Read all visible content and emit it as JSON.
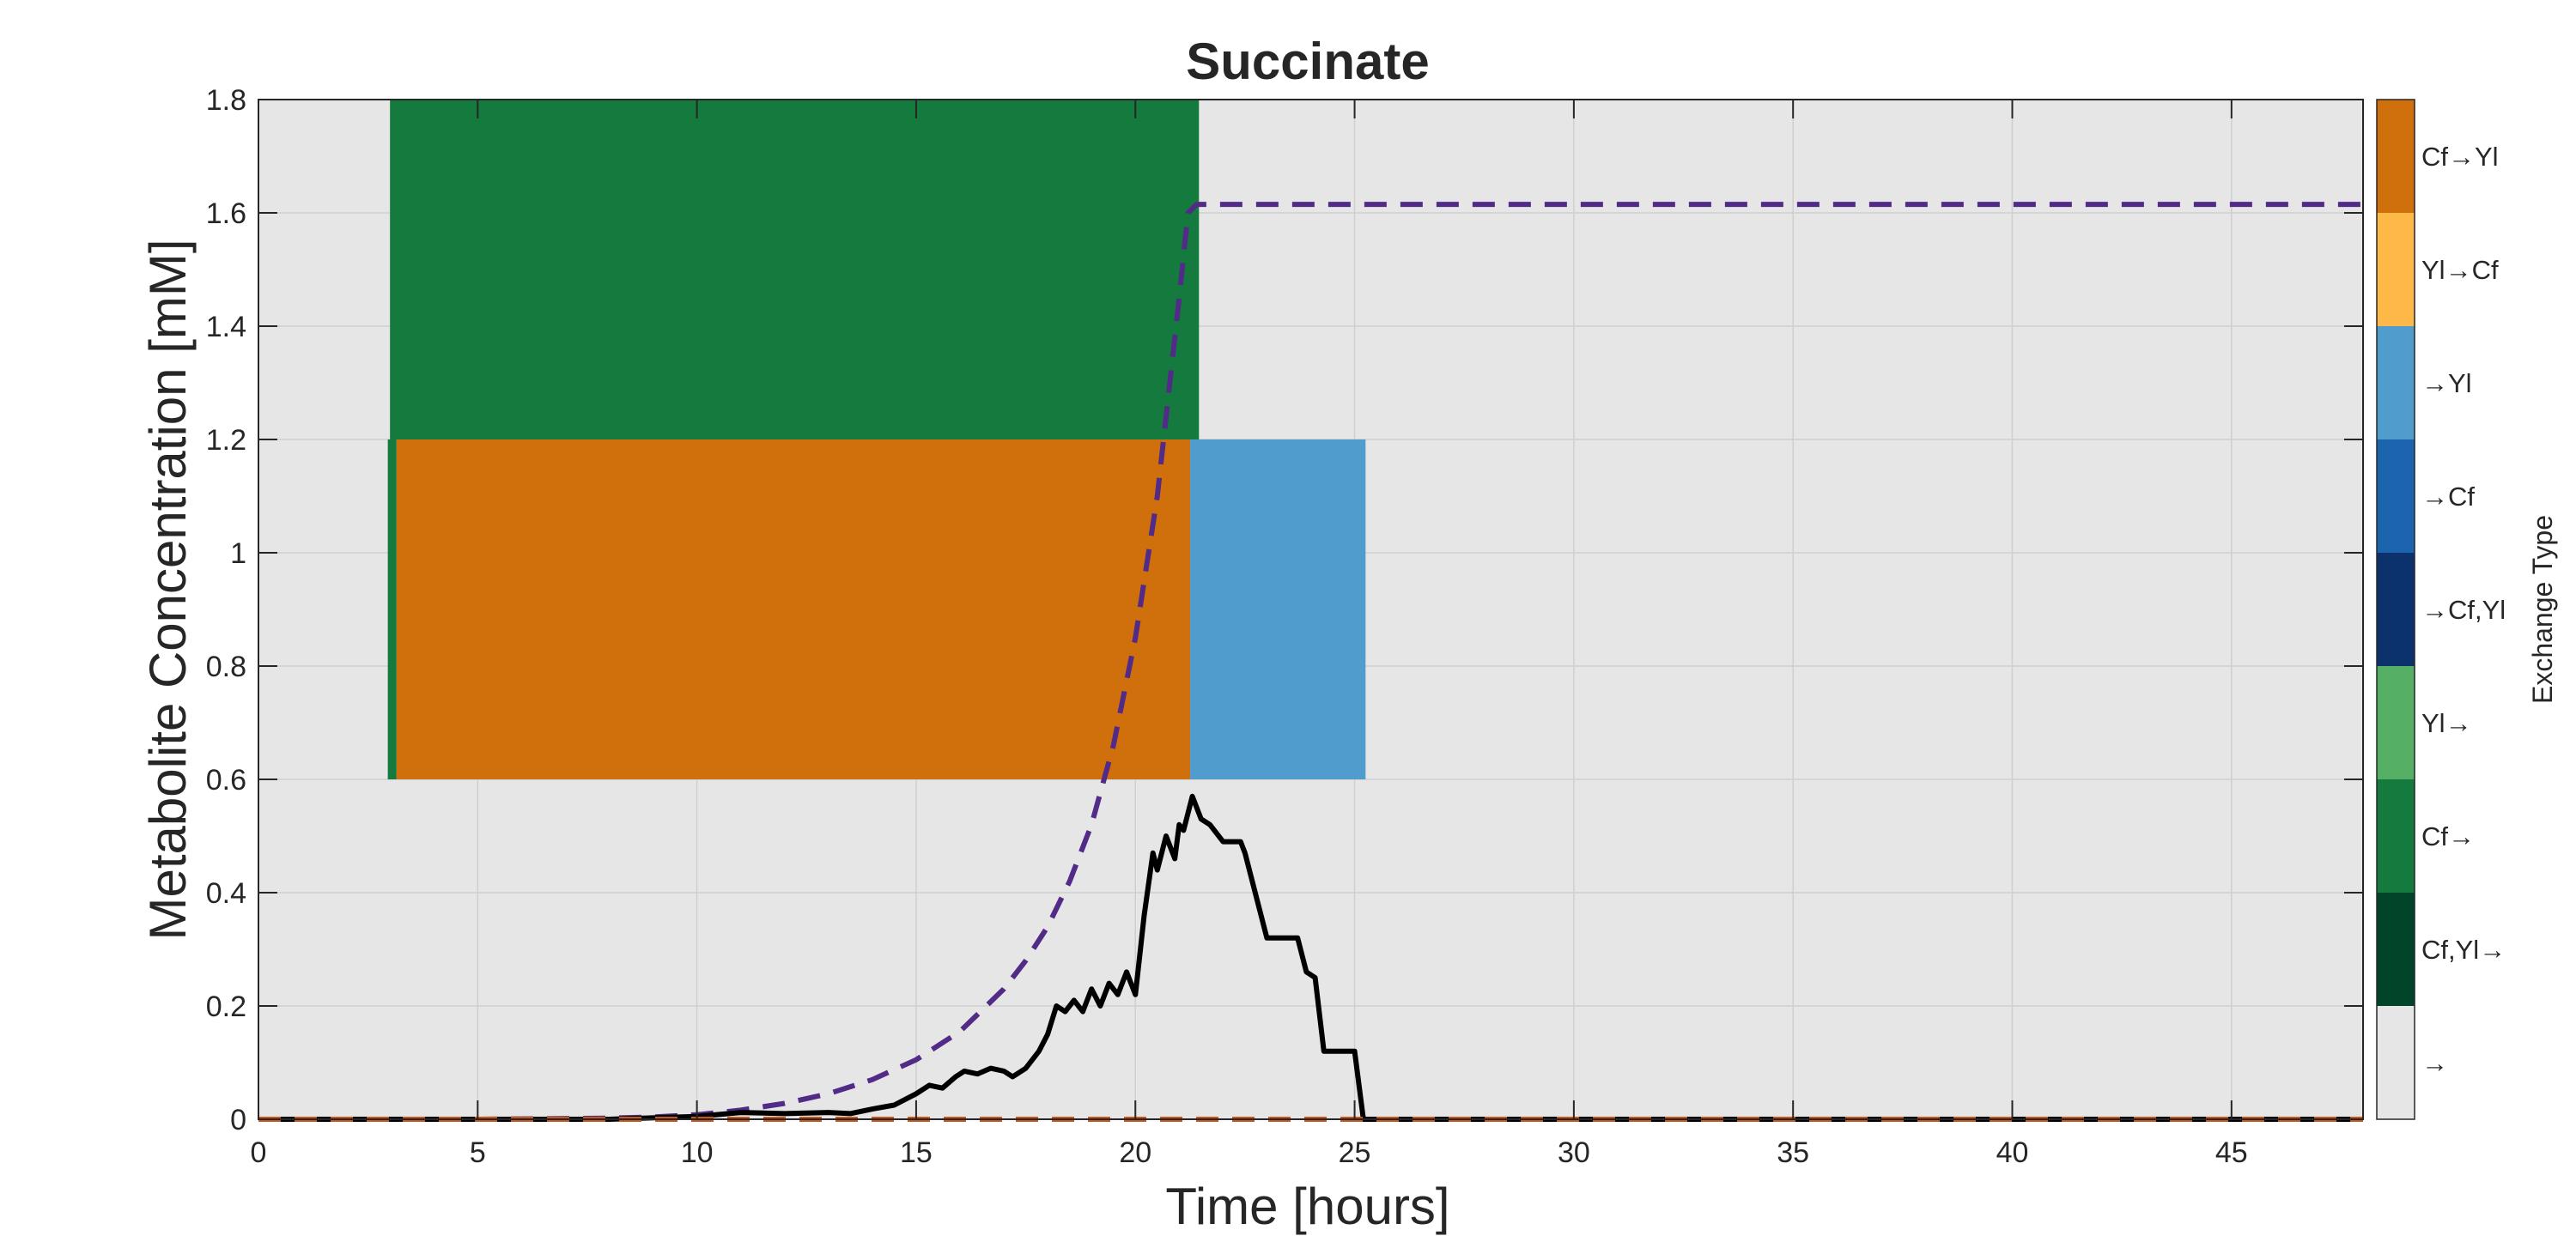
{
  "chart_data": {
    "type": "line",
    "title": "Succinate",
    "xlabel": "Time [hours]",
    "ylabel": "Metabolite Concentration [mM]",
    "xlim": [
      0,
      48
    ],
    "ylim": [
      0,
      1.8
    ],
    "x_ticks": [
      0,
      5,
      10,
      15,
      20,
      25,
      30,
      35,
      40,
      45
    ],
    "y_ticks": [
      0,
      0.2,
      0.4,
      0.6,
      0.8,
      1,
      1.2,
      1.4,
      1.6,
      1.8
    ],
    "x_tick_labels": [
      "0",
      "5",
      "10",
      "15",
      "20",
      "25",
      "30",
      "35",
      "40",
      "45"
    ],
    "y_tick_labels": [
      "0",
      "0.2",
      "0.4",
      "0.6",
      "0.8",
      "1",
      "1.2",
      "1.4",
      "1.6",
      "1.8"
    ],
    "grid": true,
    "background_color": "#e6e6e6",
    "exchange_bands": [
      {
        "row": "upper",
        "y_range": [
          1.2,
          1.8
        ],
        "segments": [
          {
            "x_start": 3.0,
            "x_end": 21.45,
            "type": "Cf→",
            "color": "#157a3e"
          }
        ]
      },
      {
        "row": "lower",
        "y_range": [
          0.6,
          1.2
        ],
        "segments": [
          {
            "x_start": 2.95,
            "x_end": 3.15,
            "type": "Cf→",
            "color": "#157a3e"
          },
          {
            "x_start": 3.15,
            "x_end": 21.25,
            "type": "Cf→Yl",
            "color": "#d0700c"
          },
          {
            "x_start": 21.25,
            "x_end": 25.25,
            "type": "→Yl",
            "color": "#4f9ccd"
          }
        ]
      }
    ],
    "series": [
      {
        "color": "#512b87",
        "style": "dashed",
        "x": [
          0,
          5,
          8,
          9,
          10,
          11,
          12,
          13,
          14,
          15,
          16,
          17,
          17.5,
          18,
          18.5,
          19,
          19.5,
          20,
          20.5,
          21,
          21.2,
          21.4,
          48
        ],
        "y": [
          0,
          0,
          0.002,
          0.004,
          0.008,
          0.016,
          0.028,
          0.045,
          0.07,
          0.105,
          0.155,
          0.23,
          0.28,
          0.34,
          0.42,
          0.52,
          0.66,
          0.85,
          1.1,
          1.45,
          1.6,
          1.615,
          1.615
        ]
      },
      {
        "color": "#000000",
        "style": "solid",
        "x": [
          0,
          8,
          10,
          11,
          12,
          13,
          13.5,
          14,
          14.5,
          15,
          15.3,
          15.6,
          15.9,
          16.1,
          16.4,
          16.7,
          17,
          17.2,
          17.5,
          17.8,
          18,
          18.2,
          18.4,
          18.6,
          18.8,
          19,
          19.2,
          19.4,
          19.6,
          19.8,
          20,
          20.2,
          20.4,
          20.5,
          20.7,
          20.9,
          21,
          21.1,
          21.3,
          21.5,
          21.7,
          22,
          22.2,
          22.4,
          22.5,
          23,
          23.5,
          23.7,
          23.9,
          24.1,
          24.3,
          24.5,
          24.8,
          25,
          25.2,
          48
        ],
        "y": [
          0,
          0,
          0.005,
          0.012,
          0.01,
          0.012,
          0.01,
          0.018,
          0.025,
          0.045,
          0.06,
          0.055,
          0.075,
          0.085,
          0.08,
          0.09,
          0.085,
          0.075,
          0.09,
          0.12,
          0.15,
          0.2,
          0.19,
          0.21,
          0.19,
          0.23,
          0.2,
          0.24,
          0.22,
          0.26,
          0.22,
          0.36,
          0.47,
          0.44,
          0.5,
          0.46,
          0.52,
          0.51,
          0.57,
          0.53,
          0.52,
          0.49,
          0.49,
          0.49,
          0.47,
          0.32,
          0.32,
          0.32,
          0.26,
          0.25,
          0.12,
          0.12,
          0.12,
          0.12,
          0.0,
          0.0
        ]
      },
      {
        "color": "#c8561a",
        "style": "dashed",
        "x": [
          0,
          48
        ],
        "y": [
          0,
          0
        ]
      }
    ]
  },
  "colorbar": {
    "label": "Exchange Type",
    "entries": [
      {
        "label": "Cf→Yl",
        "color": "#d0700c"
      },
      {
        "label": "Yl→Cf",
        "color": "#fdb847"
      },
      {
        "label": "→Yl",
        "color": "#4f9ccd"
      },
      {
        "label": "→Cf",
        "color": "#1c64ae"
      },
      {
        "label": "→Cf,Yl",
        "color": "#0c326d"
      },
      {
        "label": "Yl→",
        "color": "#55b065"
      },
      {
        "label": "Cf→",
        "color": "#157a3e"
      },
      {
        "label": "Cf,Yl→",
        "color": "#00452a"
      },
      {
        "label": "→",
        "color": "#e6e6e6"
      }
    ]
  }
}
